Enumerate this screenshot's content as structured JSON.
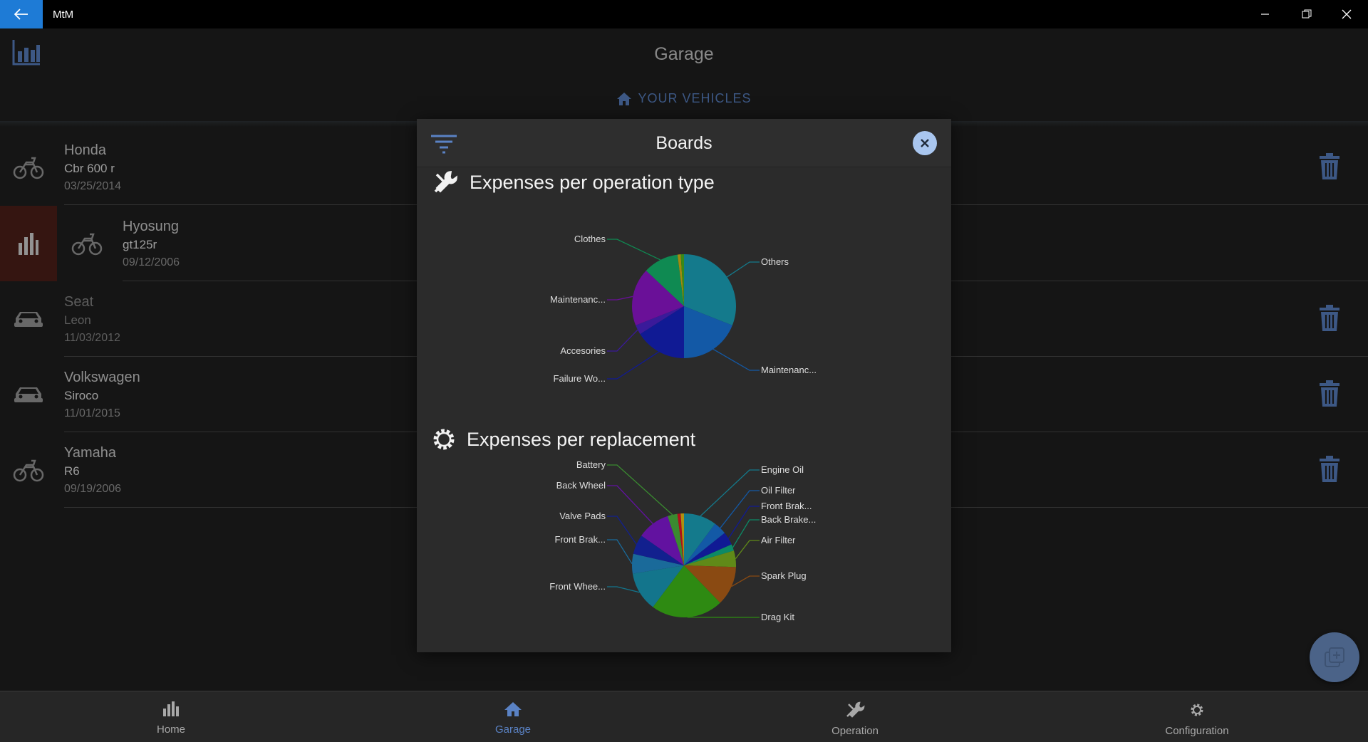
{
  "window": {
    "title": "MtM"
  },
  "header": {
    "page_title": "Garage",
    "section_tab": "YOUR VEHICLES"
  },
  "vehicles": [
    {
      "make": "Honda",
      "model": "Cbr 600 r",
      "date": "03/25/2014",
      "icon": "bike-icon"
    },
    {
      "make": "Hyosung",
      "model": "gt125r",
      "date": "09/12/2006",
      "icon": "bike-icon"
    },
    {
      "make": "Seat",
      "model": "Leon",
      "date": "11/03/2012",
      "icon": "car-icon"
    },
    {
      "make": "Volkswagen",
      "model": "Siroco",
      "date": "11/01/2015",
      "icon": "car-icon"
    },
    {
      "make": "Yamaha",
      "model": "R6",
      "date": "09/19/2006",
      "icon": "bike-icon"
    }
  ],
  "bottom_nav": [
    {
      "label": "Home",
      "icon": "bar-chart-icon",
      "active": false
    },
    {
      "label": "Garage",
      "icon": "home-icon",
      "active": true
    },
    {
      "label": "Operation",
      "icon": "tools-icon",
      "active": false
    },
    {
      "label": "Configuration",
      "icon": "gear-icon",
      "active": false
    }
  ],
  "modal": {
    "title": "Boards",
    "charts_titles": [
      "Expenses per operation type",
      "Expenses per replacement"
    ]
  },
  "colors": {
    "accent": "#5a82c4",
    "close_button": "#a9c6ef",
    "swipe_action": "#4f1f1a",
    "fab": "#6f93c9"
  },
  "chart_data": [
    {
      "type": "pie",
      "title": "Expenses per operation type",
      "labels": [
        "Others",
        "Maintenanc...",
        "Failure Wo...",
        "Accesories",
        "Maintenanc...",
        "Clothes"
      ],
      "values": [
        31,
        19,
        16,
        3,
        18,
        11
      ],
      "colors": [
        "#147a8c",
        "#1359a6",
        "#101a94",
        "#3a1a9a",
        "#6a1098",
        "#0f8a52"
      ],
      "extra_slices": [
        {
          "value": 1,
          "color": "#a08a10"
        },
        {
          "value": 1,
          "color": "#3a8a18"
        }
      ]
    },
    {
      "type": "pie",
      "title": "Expenses per replacement",
      "labels": [
        "Engine Oil",
        "Oil Filter",
        "Front Brak...",
        "Back Brake...",
        "Air Filter",
        "Spark Plug",
        "Drag Kit",
        "Front Whee...",
        "Front Brak...",
        "Valve Pads",
        "Back Wheel",
        "Battery"
      ],
      "values": [
        10,
        4,
        4,
        2,
        5,
        12,
        22,
        12,
        6,
        6,
        10,
        3
      ],
      "colors": [
        "#147a8c",
        "#1359a6",
        "#101a94",
        "#0c8a66",
        "#608a18",
        "#8a4a12",
        "#2e8a12",
        "#13758c",
        "#1a6a9a",
        "#12208e",
        "#6212a0",
        "#3a8a30"
      ],
      "extra_slices": [
        {
          "value": 1,
          "color": "#b0101a"
        },
        {
          "value": 1,
          "color": "#b09010"
        }
      ]
    }
  ]
}
